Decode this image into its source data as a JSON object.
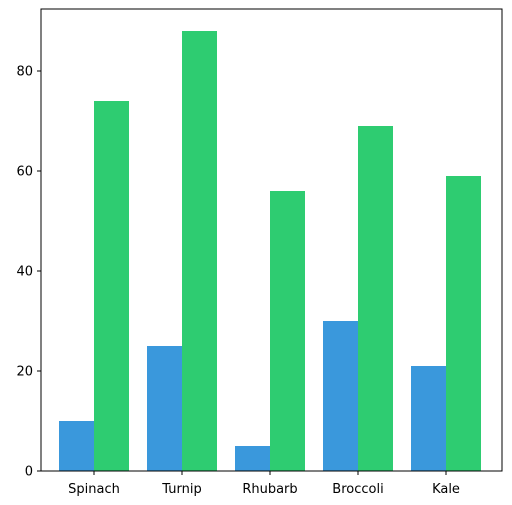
{
  "chart_data": {
    "type": "bar",
    "title": "",
    "xlabel": "",
    "ylabel": "",
    "categories": [
      "Spinach",
      "Turnip",
      "Rhubarb",
      "Broccoli",
      "Kale"
    ],
    "series": [
      {
        "values": [
          10,
          25,
          5,
          30,
          21
        ],
        "color": "#3a98dc"
      },
      {
        "values": [
          74,
          88,
          56,
          69,
          59
        ],
        "color": "#2ecc71"
      }
    ],
    "ylim": [
      0,
      92.4
    ],
    "yticks": [
      0,
      20,
      40,
      60,
      80
    ],
    "grid": false,
    "legend": "none"
  }
}
